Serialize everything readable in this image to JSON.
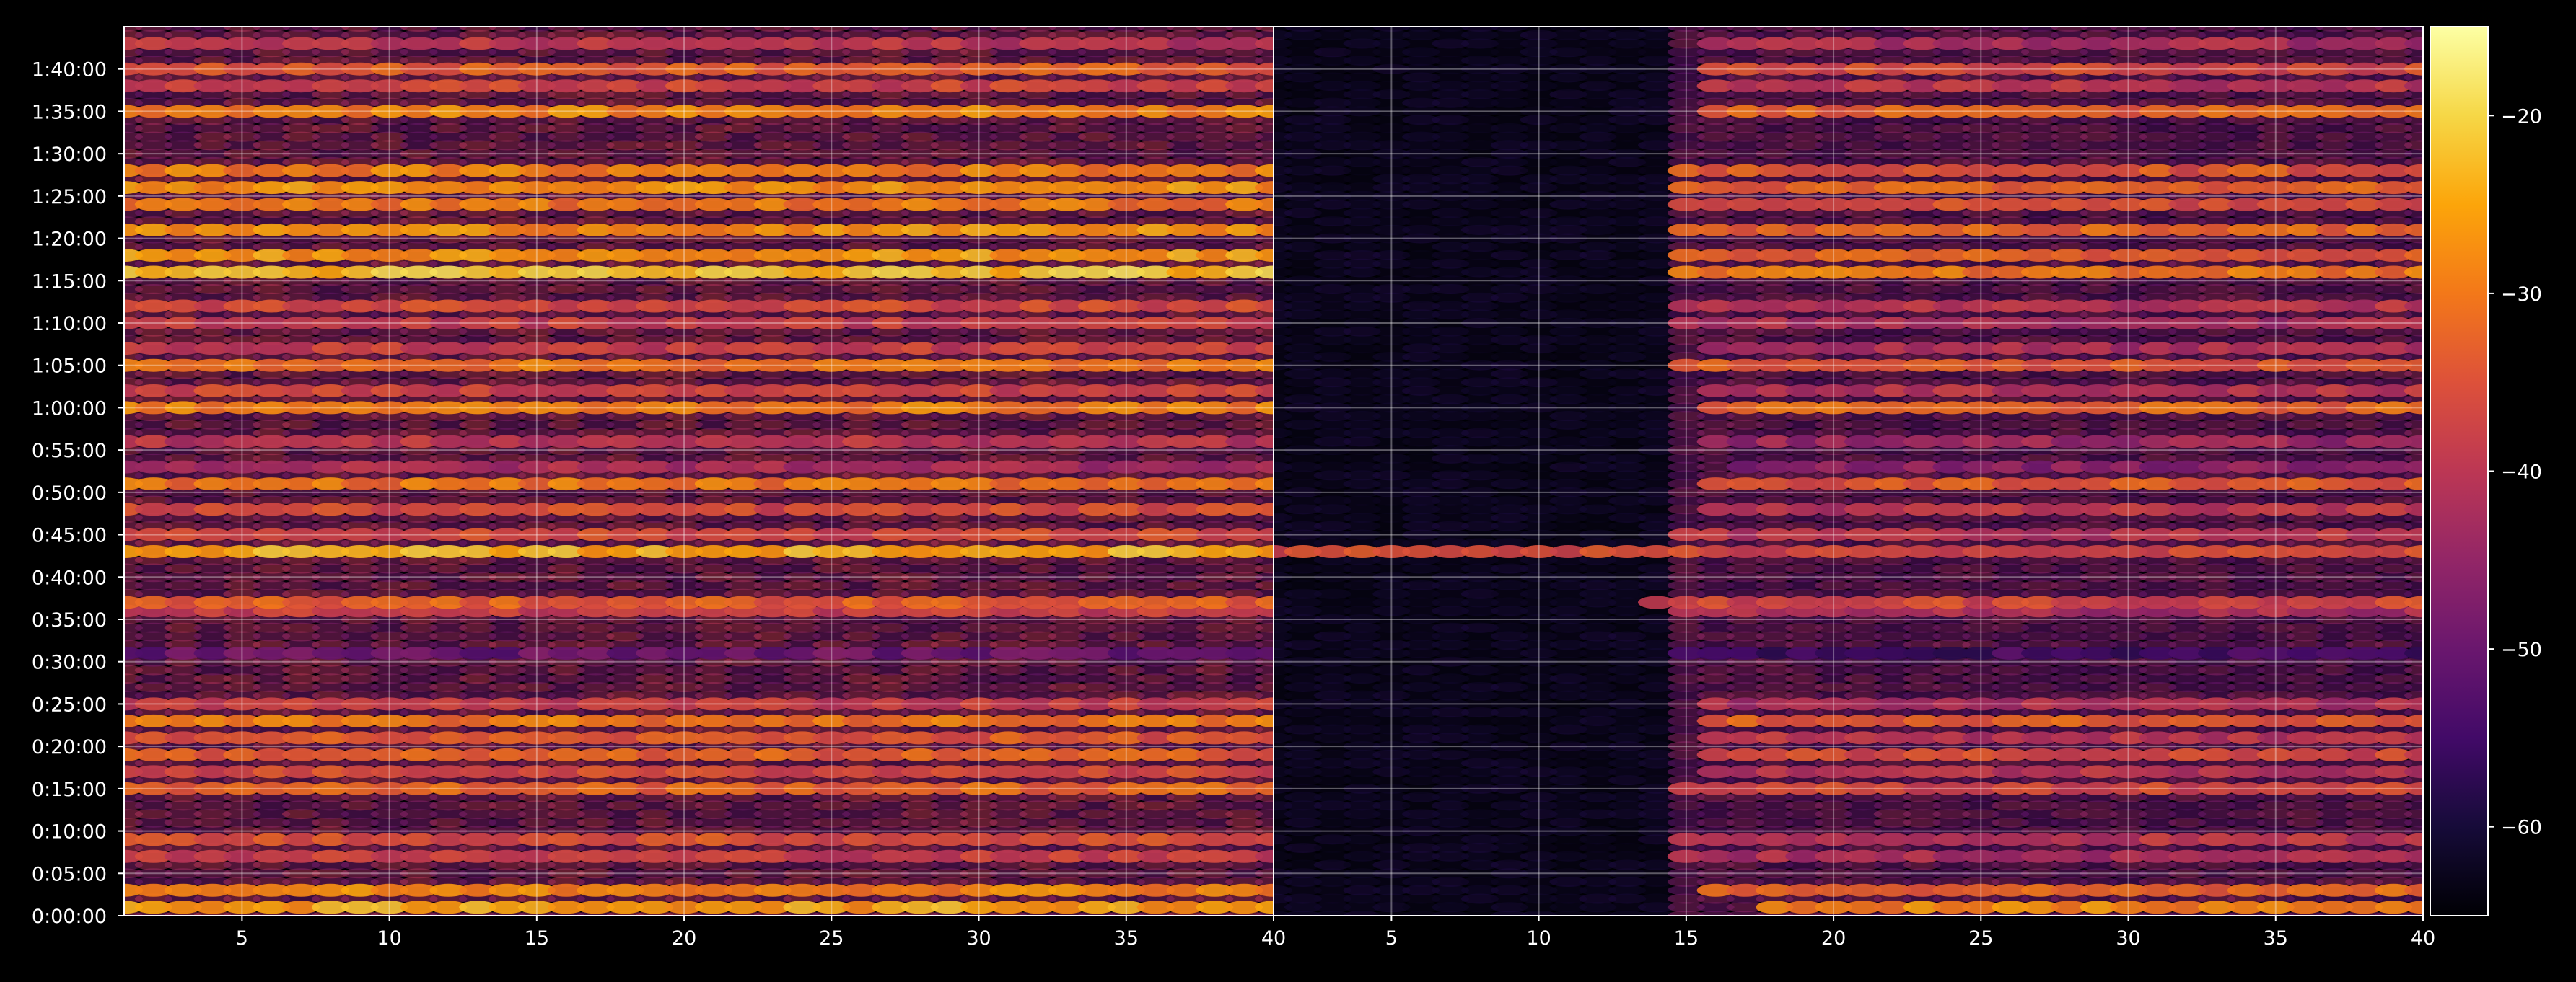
{
  "chart_data": {
    "type": "heatmap",
    "title": "",
    "xlabel": "",
    "ylabel": "",
    "grid": true,
    "panels": [
      {
        "name": "",
        "xlim": [
          1,
          40
        ],
        "ylim_seconds": [
          0,
          6300
        ],
        "x_tick_labels": [
          "5",
          "10",
          "15",
          "20",
          "25",
          "30",
          "35",
          "40"
        ],
        "x_tick_values": [
          5,
          10,
          15,
          20,
          25,
          30,
          35,
          40
        ]
      },
      {
        "name": "",
        "xlim": [
          1,
          40
        ],
        "ylim_seconds": [
          0,
          6300
        ],
        "x_tick_labels": [
          "5",
          "10",
          "15",
          "20",
          "25",
          "30",
          "35",
          "40"
        ],
        "x_tick_values": [
          5,
          10,
          15,
          20,
          25,
          30,
          35,
          40
        ]
      }
    ],
    "y_tick_labels": [
      "0:00:00",
      "0:05:00",
      "0:10:00",
      "0:15:00",
      "0:20:00",
      "0:25:00",
      "0:30:00",
      "0:35:00",
      "0:40:00",
      "0:45:00",
      "0:50:00",
      "0:55:00",
      "1:00:00",
      "1:05:00",
      "1:10:00",
      "1:15:00",
      "1:20:00",
      "1:25:00",
      "1:30:00",
      "1:35:00",
      "1:40:00"
    ],
    "y_tick_seconds": [
      0,
      300,
      600,
      900,
      1200,
      1500,
      1800,
      2100,
      2400,
      2700,
      3000,
      3300,
      3600,
      3900,
      4200,
      4500,
      4800,
      5100,
      5400,
      5700,
      6000
    ],
    "colorbar": {
      "colormap": "inferno",
      "range": [
        -65,
        -15
      ],
      "tick_values": [
        -60,
        -50,
        -40,
        -30,
        -20
      ],
      "tick_labels": [
        "−60",
        "−50",
        "−40",
        "−30",
        "−20"
      ]
    },
    "rows": [
      {
        "t": 60,
        "left": -25,
        "right": -28,
        "right_x_start": 18
      },
      {
        "t": 180,
        "left": -28,
        "right": -32,
        "right_x_start": 16
      },
      {
        "t": 420,
        "left": -38,
        "right": -42,
        "right_x_start": 15
      },
      {
        "t": 540,
        "left": -35,
        "right": -40,
        "right_x_start": 15
      },
      {
        "t": 900,
        "left": -32,
        "right": -36,
        "right_x_start": 15
      },
      {
        "t": 1020,
        "left": -36,
        "right": -40,
        "right_x_start": 16
      },
      {
        "t": 1140,
        "left": -33,
        "right": -36,
        "right_x_start": 16
      },
      {
        "t": 1260,
        "left": -34,
        "right": -40,
        "right_x_start": 16
      },
      {
        "t": 1380,
        "left": -30,
        "right": -33,
        "right_x_start": 16
      },
      {
        "t": 1500,
        "left": -38,
        "right": -42,
        "right_x_start": 16
      },
      {
        "t": 1860,
        "left": -50,
        "right": -55,
        "right_x_start": 15
      },
      {
        "t": 2160,
        "left": -38,
        "right": -42,
        "right_x_start": 15
      },
      {
        "t": 2220,
        "left": -33,
        "right": -36,
        "right_x_start": 14
      },
      {
        "t": 2580,
        "left": -24,
        "right": -36,
        "right_x_start": 1
      },
      {
        "t": 2700,
        "left": -36,
        "right": -40,
        "right_x_start": 15
      },
      {
        "t": 2880,
        "left": -36,
        "right": -40,
        "right_x_start": 16
      },
      {
        "t": 3060,
        "left": -30,
        "right": -34,
        "right_x_start": 16
      },
      {
        "t": 3180,
        "left": -42,
        "right": -46,
        "right_x_start": 17
      },
      {
        "t": 3360,
        "left": -40,
        "right": -44,
        "right_x_start": 16
      },
      {
        "t": 3600,
        "left": -29,
        "right": -32,
        "right_x_start": 16
      },
      {
        "t": 3720,
        "left": -37,
        "right": -40,
        "right_x_start": 16
      },
      {
        "t": 3900,
        "left": -30,
        "right": -34,
        "right_x_start": 15
      },
      {
        "t": 4020,
        "left": -38,
        "right": -42,
        "right_x_start": 16
      },
      {
        "t": 4200,
        "left": -38,
        "right": -42,
        "right_x_start": 15
      },
      {
        "t": 4320,
        "left": -36,
        "right": -40,
        "right_x_start": 15
      },
      {
        "t": 4560,
        "left": -22,
        "right": -30,
        "right_x_start": 15
      },
      {
        "t": 4680,
        "left": -26,
        "right": -33,
        "right_x_start": 15
      },
      {
        "t": 4860,
        "left": -27,
        "right": -32,
        "right_x_start": 15
      },
      {
        "t": 5040,
        "left": -30,
        "right": -35,
        "right_x_start": 15
      },
      {
        "t": 5160,
        "left": -27,
        "right": -32,
        "right_x_start": 15
      },
      {
        "t": 5280,
        "left": -29,
        "right": -34,
        "right_x_start": 15
      },
      {
        "t": 5700,
        "left": -28,
        "right": -32,
        "right_x_start": 16
      },
      {
        "t": 5880,
        "left": -37,
        "right": -40,
        "right_x_start": 16
      },
      {
        "t": 6000,
        "left": -33,
        "right": -36,
        "right_x_start": 16
      },
      {
        "t": 6180,
        "left": -40,
        "right": -42,
        "right_x_start": 16
      }
    ]
  }
}
